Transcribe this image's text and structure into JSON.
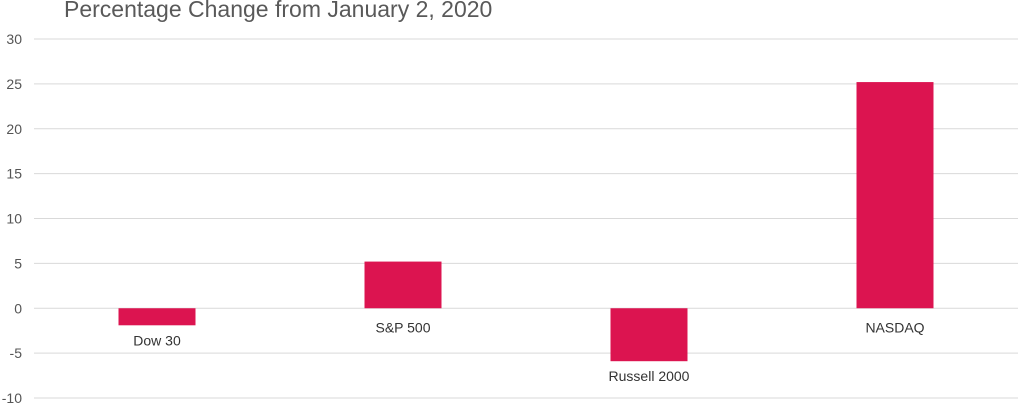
{
  "chart_data": {
    "type": "bar",
    "title": "Percentage Change from January 2, 2020",
    "xlabel": "",
    "ylabel": "",
    "categories": [
      "Dow 30",
      "S&P 500",
      "Russell 2000",
      "NASDAQ"
    ],
    "values": [
      -1.9,
      5.2,
      -5.9,
      25.2
    ],
    "ylim": [
      -10,
      30
    ],
    "yticks": [
      30,
      25,
      20,
      15,
      10,
      5,
      0,
      -5,
      -10
    ],
    "grid": true,
    "legend": "none",
    "bar_color": "#dc1450",
    "grid_color": "#d9d9d9"
  }
}
